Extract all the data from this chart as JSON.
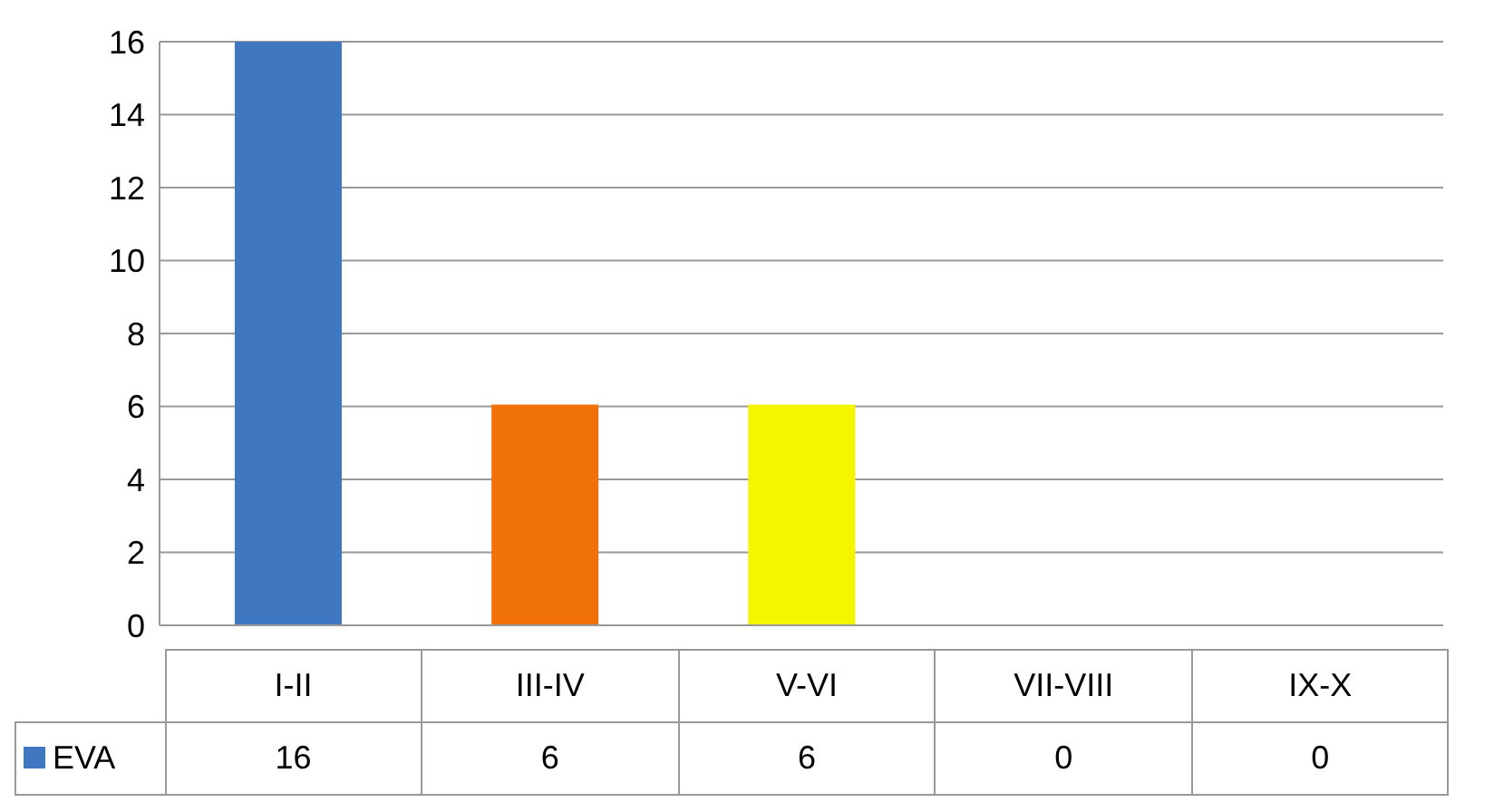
{
  "chart_data": {
    "type": "bar",
    "categories": [
      "I-II",
      "III-IV",
      "V-VI",
      "VII-VIII",
      "IX-X"
    ],
    "series": [
      {
        "name": "EVA",
        "color": "#3f78c0",
        "colors": [
          "#3f78c0",
          "#f0700a",
          "#f5f500",
          "#4b3a6e",
          "#0e9a48"
        ],
        "values": [
          16,
          6,
          6,
          0,
          0
        ]
      }
    ],
    "ylim": [
      0,
      16
    ],
    "yticks": [
      0,
      2,
      4,
      6,
      8,
      10,
      12,
      14,
      16
    ],
    "grid": "y",
    "legend": "bottom",
    "data_labels": true
  }
}
